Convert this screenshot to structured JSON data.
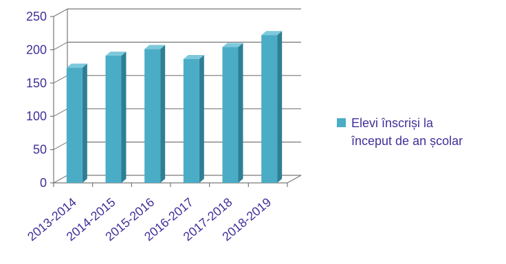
{
  "chart_data": {
    "type": "bar",
    "categories": [
      "2013-2014",
      "2014-2015",
      "2015-2016",
      "2016-2017",
      "2017-2018",
      "2018-2019"
    ],
    "series": [
      {
        "name": "Elevi înscriși la început de an școlar",
        "values": [
          173,
          191,
          201,
          186,
          204,
          222
        ]
      }
    ],
    "ylim": [
      0,
      250
    ],
    "yticks": [
      "0",
      "50",
      "100",
      "150",
      "200",
      "250"
    ],
    "grid": true,
    "legend_position": "right",
    "colors": {
      "bar_front": "#4BACC6",
      "bar_side": "#2E7F95",
      "bar_top": "#7DC9DC",
      "text": "#403099",
      "grid": "#777777"
    }
  },
  "legend": {
    "line1": "Elevi înscriși la",
    "line2": "început de an școlar"
  }
}
